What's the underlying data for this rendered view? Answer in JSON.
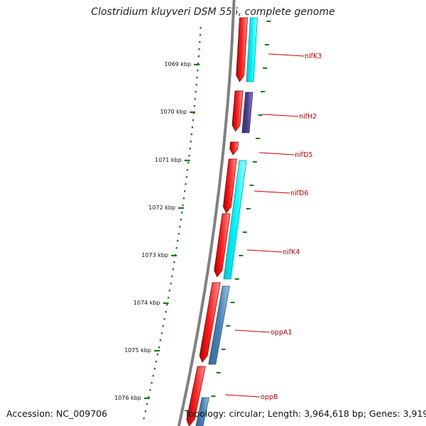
{
  "title": "Clostridium kluyveri DSM 555, complete genome",
  "accession": "Accession: NC_009706",
  "summary": "Topology: circular; Length: 3,964,618 bp; Genes: 3,919",
  "ticks": [
    "1069 kbp",
    "1070 kbp",
    "1071 kbp",
    "1072 kbp",
    "1073 kbp",
    "1074 kbp",
    "1075 kbp",
    "1076 kbp"
  ],
  "genes": [
    "nifK3",
    "nifH2",
    "nifD5",
    "nifD6",
    "nifK4",
    "oppA1",
    "oppB"
  ],
  "colors": {
    "backbone": "#808080",
    "cds": "#ff0000",
    "feature_cyan": "#00e5ee",
    "feature_purple": "#4b3d8f",
    "feature_steel": "#4682b4",
    "ticks": "#1a7a1a",
    "gene_label": "#cc0000"
  }
}
